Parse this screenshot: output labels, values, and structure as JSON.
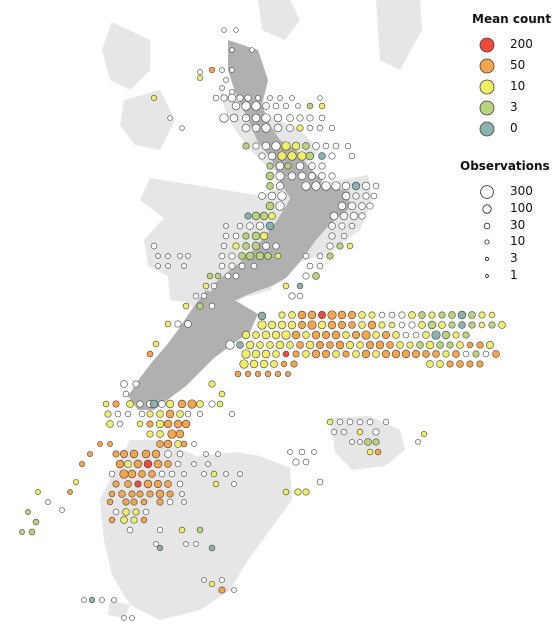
{
  "colors": {
    "land_light": "#e6e6e6",
    "land_dark": "#b0b0b0",
    "circle_stroke": "#444444"
  },
  "legend": {
    "mean_count": {
      "title": "Mean count",
      "items": [
        {
          "label": "200",
          "color": "#f04a3a"
        },
        {
          "label": "50",
          "color": "#f7a54a"
        },
        {
          "label": "10",
          "color": "#f1ee66"
        },
        {
          "label": "3",
          "color": "#b9d57c"
        },
        {
          "label": "0",
          "color": "#8ab3b0"
        }
      ]
    },
    "observations": {
      "title": "Observations",
      "items": [
        {
          "label": "300",
          "value": 300
        },
        {
          "label": "100",
          "value": 100
        },
        {
          "label": "30",
          "value": 30
        },
        {
          "label": "10",
          "value": 10
        },
        {
          "label": "3",
          "value": 3
        },
        {
          "label": "1",
          "value": 1
        }
      ]
    }
  }
}
